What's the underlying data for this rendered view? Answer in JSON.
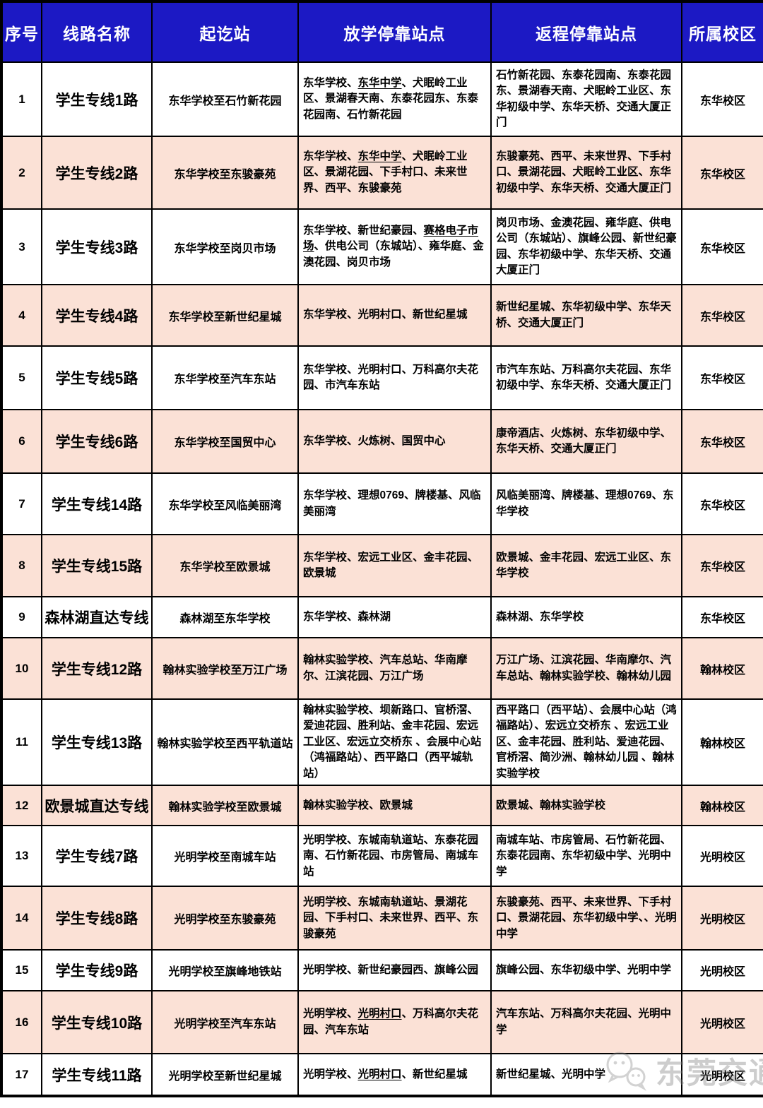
{
  "colors": {
    "header_bg": "#1c19c4",
    "header_text": "#ffffff",
    "row_alt": "#fbe1d6",
    "border": "#000000"
  },
  "watermark": {
    "text": "东莞交通",
    "icon": "wechat-bubbles-icon"
  },
  "header": {
    "columns": [
      "序号",
      "线路名称",
      "起讫站",
      "放学停靠站点",
      "返程停靠站点",
      "所属校区"
    ]
  },
  "rows": [
    {
      "num": "1",
      "name": "学生专线1路",
      "route": "东华学校至石竹新花园",
      "depart": [
        {
          "t": "东华学校、"
        },
        {
          "t": "东华中学",
          "u": true
        },
        {
          "t": "、犬眠岭工业区、景湖春天南、东泰花园东、东泰花园南、石竹新花园"
        }
      ],
      "return": "石竹新花园、东泰花园南、东泰花园东、景湖春天南、犬眠岭工业区、东华初级中学、东华天桥、交通大厦正门",
      "campus": "东华校区"
    },
    {
      "num": "2",
      "name": "学生专线2路",
      "route": "东华学校至东骏豪苑",
      "depart": [
        {
          "t": "东华学校、"
        },
        {
          "t": "东华中学",
          "u": true
        },
        {
          "t": "、犬眠岭工业区、景湖花园、下手村口、未来世界、西平、东骏豪苑"
        }
      ],
      "return": "东骏豪苑、西平、未来世界、下手村口、景湖花园、犬眠岭工业区、东华初级中学、东华天桥、交通大厦正门",
      "campus": "东华校区"
    },
    {
      "num": "3",
      "name": "学生专线3路",
      "route": "东华学校至岗贝市场",
      "depart": [
        {
          "t": "东华学校、新世纪豪园、"
        },
        {
          "t": "赛格电子市场",
          "u": true
        },
        {
          "t": "、供电公司（东城站）、雍华庭、金澳花园、岗贝市场"
        }
      ],
      "return": "岗贝市场、金澳花园、雍华庭、供电公司（东城站）、旗峰公园、新世纪豪园、东华初级中学、东华天桥、交通大厦正门",
      "campus": "东华校区"
    },
    {
      "num": "4",
      "name": "学生专线4路",
      "route": "东华学校至新世纪星城",
      "depart": [
        {
          "t": "东华学校、光明村口、新世纪星城"
        }
      ],
      "return": "新世纪星城、东华初级中学、东华天桥、交通大厦正门",
      "campus": "东华校区"
    },
    {
      "num": "5",
      "name": "学生专线5路",
      "route": "东华学校至汽车东站",
      "depart": [
        {
          "t": "东华学校、光明村口、万科高尔夫花园、市汽车东站"
        }
      ],
      "return": "市汽车东站、万科高尔夫花园、东华初级中学、东华天桥、交通大厦正门",
      "campus": "东华校区"
    },
    {
      "num": "6",
      "name": "学生专线6路",
      "route": "东华学校至国贸中心",
      "depart": [
        {
          "t": "东华学校、火炼树、国贸中心"
        }
      ],
      "return": "康帝酒店、火炼树、东华初级中学、东华天桥、交通大厦正门",
      "campus": "东华校区"
    },
    {
      "num": "7",
      "name": "学生专线14路",
      "route": "东华学校至风临美丽湾",
      "depart": [
        {
          "t": "东华学校、理想0769、牌楼基、风临美丽湾"
        }
      ],
      "return": "风临美丽湾、牌楼基、理想0769、东华学校",
      "campus": "东华校区"
    },
    {
      "num": "8",
      "name": "学生专线15路",
      "route": "东华学校至欧景城",
      "depart": [
        {
          "t": "东华学校、宏远工业区、金丰花园、欧景城"
        }
      ],
      "return": "欧景城、金丰花园、宏远工业区、东华学校",
      "campus": "东华校区"
    },
    {
      "num": "9",
      "name": "森林湖直达专线",
      "route": "森林湖至东华学校",
      "depart": [
        {
          "t": "东华学校、森林湖"
        }
      ],
      "return": "森林湖、东华学校",
      "campus": "东华校区"
    },
    {
      "num": "10",
      "name": "学生专线12路",
      "route": "翰林实验学校至万江广场",
      "depart": [
        {
          "t": "翰林实验学校、汽车总站、华南摩尔、江滨花园、万江广场"
        }
      ],
      "return": "万江广场、江滨花园、华南摩尔、汽车总站、翰林实验学校、翰林幼儿园",
      "campus": "翰林校区"
    },
    {
      "num": "11",
      "name": "学生专线13路",
      "route": "翰林实验学校至西平轨道站",
      "depart": [
        {
          "t": "翰林实验学校、坝新路口、官桥滘、爱迪花园、胜利站、金丰花园、宏远工业区、宏远立交桥东 、会展中心站（鸿福路站）、西平路口（西平城轨站）"
        }
      ],
      "return": "西平路口（西平站）、会展中心站（鸿福路站）、宏远立交桥东 、宏远工业区、金丰花园、胜利站、爱迪花园、官桥滘、简沙洲、翰林幼儿园 、翰林实验学校",
      "campus": "翰林校区"
    },
    {
      "num": "12",
      "name": "欧景城直达专线",
      "route": "翰林实验学校至欧景城",
      "depart": [
        {
          "t": "翰林实验学校、欧景城"
        }
      ],
      "return": "欧景城、翰林实验学校",
      "campus": "翰林校区"
    },
    {
      "num": "13",
      "name": "学生专线7路",
      "route": "光明学校至南城车站",
      "depart": [
        {
          "t": "光明学校、东城南轨道站、东泰花园南、石竹新花园、市房管局、南城车站"
        }
      ],
      "return": "南城车站、市房管局、石竹新花园、东泰花园南、东华初级中学、光明中学",
      "campus": "光明校区"
    },
    {
      "num": "14",
      "name": "学生专线8路",
      "route": "光明学校至东骏豪苑",
      "depart": [
        {
          "t": "光明学校、东城南轨道站、景湖花园、下手村口、未来世界、西平、东骏豪苑"
        }
      ],
      "return": "东骏豪苑、西平、未来世界、下手村口、景湖花园、东华初级中学、、光明中学",
      "campus": "光明校区"
    },
    {
      "num": "15",
      "name": "学生专线9路",
      "route": "光明学校至旗峰地铁站",
      "depart": [
        {
          "t": "光明学校、新世纪豪园西、旗峰公园"
        }
      ],
      "return": "旗峰公园、东华初级中学、光明中学",
      "campus": "光明校区"
    },
    {
      "num": "16",
      "name": "学生专线10路",
      "route": "光明学校至汽车东站",
      "depart": [
        {
          "t": "光明学校、"
        },
        {
          "t": "光明村口",
          "u": true
        },
        {
          "t": "、万科高尔夫花园、汽车东站"
        }
      ],
      "return": "汽车东站、万科高尔夫花园、光明中学",
      "campus": "光明校区"
    },
    {
      "num": "17",
      "name": "学生专线11路",
      "route": "光明学校至新世纪星城",
      "depart": [
        {
          "t": "光明学校、"
        },
        {
          "t": "光明村口",
          "u": true
        },
        {
          "t": "、新世纪星城"
        }
      ],
      "return": "新世纪星城、光明中学",
      "campus": "光明校区"
    }
  ]
}
